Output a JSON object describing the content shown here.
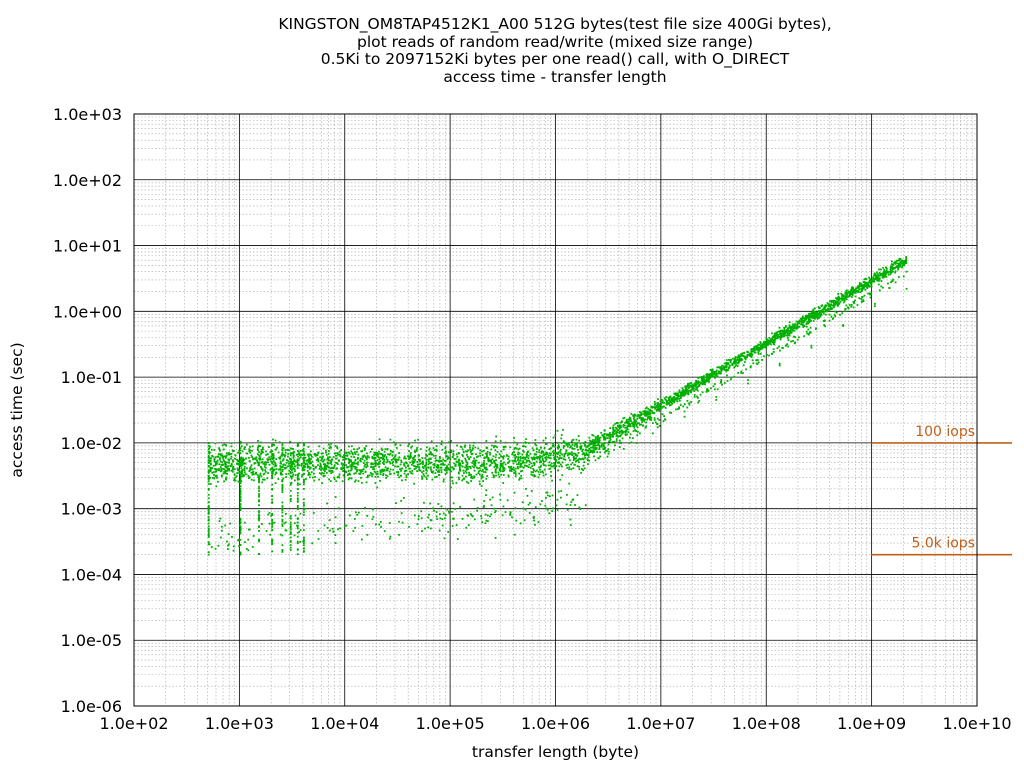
{
  "chart_data": {
    "type": "scatter",
    "title_lines": [
      "KINGSTON_OM8TAP4512K1_A00 512G bytes(test file size 400Gi bytes),",
      "plot reads of random read/write (mixed size range)",
      "0.5Ki to 2097152Ki bytes per one read() call, with O_DIRECT",
      "access time - transfer length"
    ],
    "xlabel": "transfer length (byte)",
    "ylabel": "access time (sec)",
    "x_scale": "log",
    "y_scale": "log",
    "xlim": [
      100,
      10000000000
    ],
    "ylim": [
      1e-06,
      1000
    ],
    "x_tick_labels": [
      "1.0e+02",
      "1.0e+03",
      "1.0e+04",
      "1.0e+05",
      "1.0e+06",
      "1.0e+07",
      "1.0e+08",
      "1.0e+09",
      "1.0e+10"
    ],
    "y_tick_labels": [
      "1.0e+03",
      "1.0e+02",
      "1.0e+01",
      "1.0e+00",
      "1.0e-01",
      "1.0e-02",
      "1.0e-03",
      "1.0e-04",
      "1.0e-05",
      "1.0e-06"
    ],
    "grid": true,
    "series": [
      {
        "color": "#00b000",
        "x_min": 512,
        "x_max": 2147483648,
        "points": [
          [
            512,
            0.0002
          ],
          [
            512,
            0.0004
          ],
          [
            512,
            0.001
          ],
          [
            512,
            0.003
          ],
          [
            512,
            0.006
          ],
          [
            512,
            0.01
          ],
          [
            1024,
            0.0002
          ],
          [
            1024,
            0.0005
          ],
          [
            1024,
            0.002
          ],
          [
            1024,
            0.005
          ],
          [
            1024,
            0.01
          ],
          [
            2048,
            0.0003
          ],
          [
            2048,
            0.002
          ],
          [
            2048,
            0.005
          ],
          [
            2048,
            0.009
          ],
          [
            4096,
            0.0003
          ],
          [
            4096,
            0.002
          ],
          [
            4096,
            0.006
          ],
          [
            4096,
            0.01
          ],
          [
            8192,
            0.0003
          ],
          [
            8192,
            0.0015
          ],
          [
            8192,
            0.005
          ],
          [
            8192,
            0.009
          ],
          [
            16384,
            0.0004
          ],
          [
            16384,
            0.003
          ],
          [
            16384,
            0.006
          ],
          [
            32768,
            0.0004
          ],
          [
            32768,
            0.003
          ],
          [
            32768,
            0.007
          ],
          [
            65536,
            0.0005
          ],
          [
            65536,
            0.004
          ],
          [
            65536,
            0.007
          ],
          [
            131072,
            0.0007
          ],
          [
            131072,
            0.005
          ],
          [
            131072,
            0.008
          ],
          [
            262144,
            0.001
          ],
          [
            262144,
            0.005
          ],
          [
            262144,
            0.009
          ],
          [
            524288,
            0.002
          ],
          [
            524288,
            0.006
          ],
          [
            524288,
            0.01
          ],
          [
            1048576,
            0.005
          ],
          [
            1048576,
            0.01
          ],
          [
            2097152,
            0.008
          ],
          [
            2097152,
            0.012
          ],
          [
            4194304,
            0.01
          ],
          [
            4194304,
            0.015
          ],
          [
            8388608,
            0.014
          ],
          [
            8388608,
            0.02
          ],
          [
            16777216,
            0.025
          ],
          [
            16777216,
            0.03
          ],
          [
            33554432,
            0.045
          ],
          [
            33554432,
            0.05
          ],
          [
            67108864,
            0.08
          ],
          [
            67108864,
            0.09
          ],
          [
            134217728,
            0.15
          ],
          [
            134217728,
            0.16
          ],
          [
            268435456,
            0.28
          ],
          [
            268435456,
            0.3
          ],
          [
            536870912,
            0.6
          ],
          [
            536870912,
            0.62
          ],
          [
            1073741824,
            1.2
          ],
          [
            1073741824,
            1.3
          ],
          [
            2147483648,
            2.2
          ],
          [
            2147483648,
            4.0
          ]
        ]
      }
    ],
    "reference_lines": [
      {
        "label": "100 iops",
        "y": 0.01,
        "x_from": 1000000000,
        "color": "#c0601a"
      },
      {
        "label": "5.0k iops",
        "y": 0.0002,
        "x_from": 1000000000,
        "color": "#c0601a"
      }
    ]
  }
}
